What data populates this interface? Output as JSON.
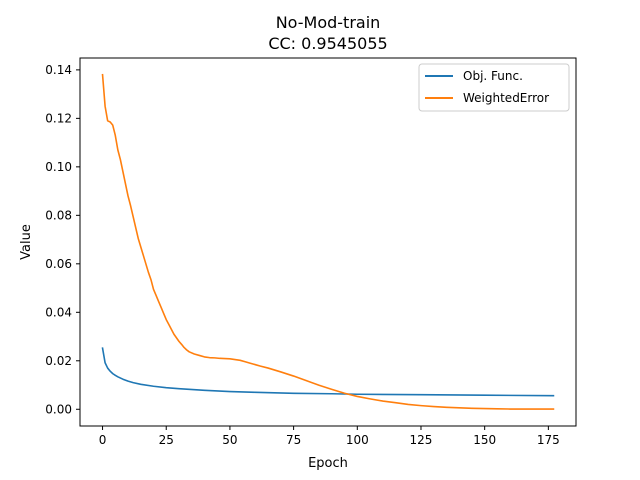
{
  "chart_data": {
    "type": "line",
    "title_line1": "No-Mod-train",
    "title_line2": "CC: 0.9545055",
    "xlabel": "Epoch",
    "ylabel": "Value",
    "xlim": [
      -8.85,
      185.85
    ],
    "ylim": [
      -0.0069,
      0.1449
    ],
    "xticks": [
      0,
      25,
      50,
      75,
      100,
      125,
      150,
      175
    ],
    "xtick_labels": [
      "0",
      "25",
      "50",
      "75",
      "100",
      "125",
      "150",
      "175"
    ],
    "yticks": [
      0.0,
      0.02,
      0.04,
      0.06,
      0.08,
      0.1,
      0.12,
      0.14
    ],
    "ytick_labels": [
      "0.00",
      "0.02",
      "0.04",
      "0.06",
      "0.08",
      "0.10",
      "0.12",
      "0.14"
    ],
    "grid": false,
    "legend_position": "top-right",
    "series": [
      {
        "name": "Obj. Func.",
        "color": "#1f77b4",
        "x": [
          0,
          1,
          2,
          3,
          4,
          5,
          6,
          8,
          10,
          12,
          15,
          20,
          25,
          30,
          40,
          50,
          60,
          75,
          90,
          100,
          125,
          150,
          177
        ],
        "y": [
          0.0252,
          0.0192,
          0.017,
          0.0157,
          0.0147,
          0.014,
          0.0134,
          0.0124,
          0.0116,
          0.011,
          0.0103,
          0.0095,
          0.0089,
          0.0085,
          0.0078,
          0.0073,
          0.007,
          0.0066,
          0.0064,
          0.0062,
          0.006,
          0.0058,
          0.0056
        ]
      },
      {
        "name": "WeightedError",
        "color": "#ff7f0e",
        "x": [
          0,
          1,
          2,
          3,
          4,
          5,
          6,
          7,
          8,
          9,
          10,
          11,
          12,
          13,
          14,
          15,
          16,
          17,
          18,
          19,
          20,
          21,
          22,
          23,
          24,
          25,
          26,
          27,
          28,
          29,
          30,
          31,
          32,
          33,
          34,
          36,
          38,
          40,
          42,
          44,
          46,
          48,
          50,
          52,
          54,
          56,
          58,
          60,
          62,
          65,
          70,
          75,
          80,
          85,
          90,
          95,
          100,
          105,
          110,
          115,
          120,
          125,
          130,
          135,
          140,
          145,
          150,
          155,
          160,
          165,
          170,
          177
        ],
        "y": [
          0.138,
          0.125,
          0.119,
          0.1185,
          0.1172,
          0.113,
          0.107,
          0.103,
          0.098,
          0.093,
          0.088,
          0.084,
          0.0795,
          0.075,
          0.0705,
          0.067,
          0.0635,
          0.06,
          0.0565,
          0.0535,
          0.0495,
          0.047,
          0.0445,
          0.042,
          0.0395,
          0.037,
          0.035,
          0.033,
          0.031,
          0.0295,
          0.028,
          0.0268,
          0.0255,
          0.0245,
          0.0237,
          0.0228,
          0.0222,
          0.0216,
          0.0213,
          0.0212,
          0.021,
          0.0209,
          0.0208,
          0.0205,
          0.0202,
          0.0196,
          0.019,
          0.0184,
          0.0178,
          0.017,
          0.0154,
          0.0137,
          0.0118,
          0.0099,
          0.0082,
          0.0066,
          0.0053,
          0.0043,
          0.0034,
          0.0027,
          0.002,
          0.0015,
          0.0011,
          0.0008,
          0.0006,
          0.0004,
          0.0003,
          0.0002,
          0.0001,
          0.0001,
          0.0001,
          0.0001
        ]
      }
    ]
  }
}
